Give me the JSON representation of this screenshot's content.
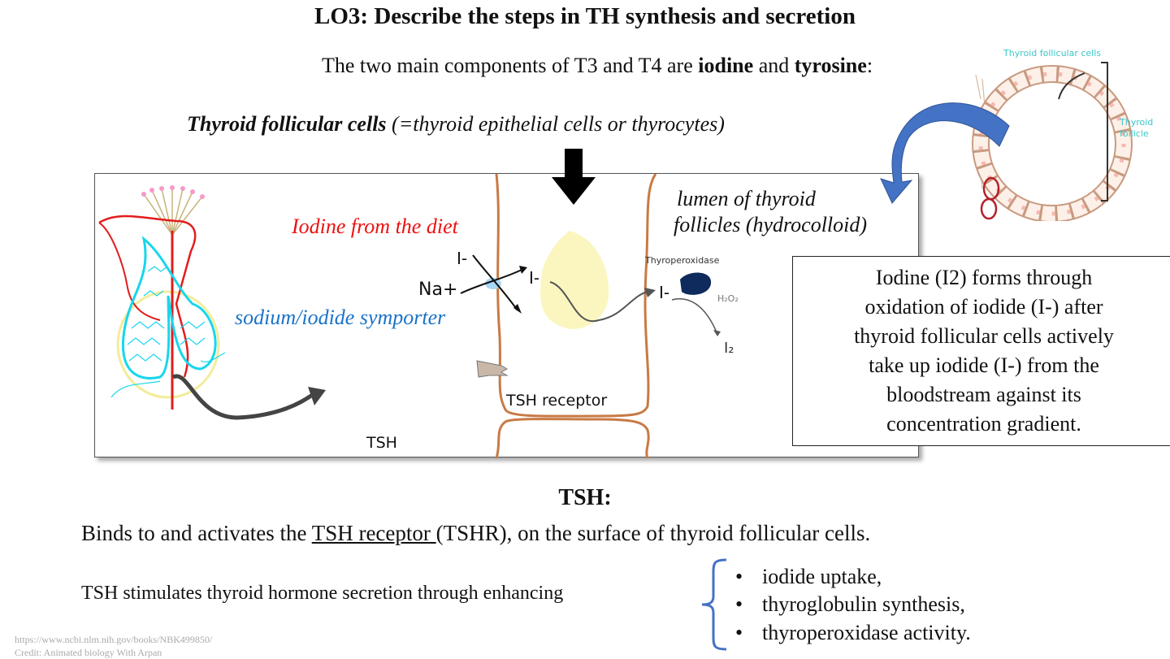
{
  "title": "LO3: Describe the steps in TH synthesis and secretion",
  "subtitle": {
    "prefix": "The two main components of T3 and T4 are ",
    "bold1": "iodine",
    "mid": " and ",
    "bold2": "tyrosine",
    "suffix": ":"
  },
  "cells_line": {
    "bold": "Thyroid follicular cells",
    "rest": " (=thyroid epithelial cells or thyrocytes)"
  },
  "diagram": {
    "iodine_diet": "Iodine from the diet",
    "symporter": "sodium/iodide symporter",
    "lumen_line1": "lumen of thyroid",
    "lumen_line2": "follicles (hydrocolloid)",
    "i_minus_1": "I-",
    "na_plus": "Na+",
    "i_minus_2": "I-",
    "thyroperoxidase": "Thyroperoxidase",
    "i_minus_3": "I-",
    "h2o2": "H₂O₂",
    "i2": "I₂",
    "tsh_receptor": "TSH receptor",
    "tsh": "TSH",
    "colors": {
      "iodine_diet": "#ee1111",
      "symporter": "#1a73c8",
      "membrane": "#c87a45"
    }
  },
  "follicle_image": {
    "cells_label": "Thyroid follicular cells",
    "follicle_line1": "Thyroid",
    "follicle_line2": "follicle",
    "label_color": "#3cc8c8"
  },
  "info_box": {
    "lines": [
      "Iodine (I2) forms through",
      "oxidation of iodide (I-) after",
      "thyroid follicular cells actively",
      "take up iodide (I-) from the",
      "bloodstream against its",
      "concentration gradient."
    ]
  },
  "tsh": {
    "heading": "TSH:",
    "binds_prefix": "Binds to and activates the ",
    "binds_link": "TSH receptor ",
    "binds_suffix": "(TSHR), on the surface of thyroid follicular cells.",
    "stimulates": "TSH stimulates thyroid hormone secretion through enhancing",
    "bullets": [
      "iodide uptake,",
      "thyroglobulin synthesis,",
      "thyroperoxidase activity."
    ],
    "bullet_char": "•"
  },
  "credits": {
    "url": "https://www.ncbi.nlm.nih.gov/books/NBK499850/",
    "credit": "Credit: Animated biology With Arpan"
  }
}
